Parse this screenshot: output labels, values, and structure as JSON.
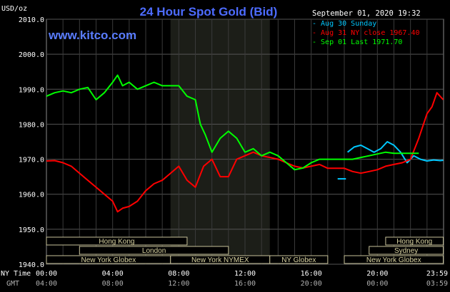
{
  "chart_data": {
    "type": "line",
    "title": "24 Hour Spot Gold (Bid)",
    "watermark": "www.kitco.com",
    "y_unit_label": "USD/oz",
    "timestamp": "September 01, 2020 19:32",
    "ylim": [
      1940,
      2010
    ],
    "xlim": [
      0,
      24
    ],
    "y_ticks": [
      "2010.0",
      "2000.0",
      "1990.0",
      "1980.0",
      "1970.0",
      "1960.0",
      "1950.0",
      "1940.0"
    ],
    "y_tick_values": [
      2010,
      2000,
      1990,
      1980,
      1970,
      1960,
      1950,
      1940
    ],
    "x_row_label_ny": "NY Time",
    "x_row_label_gmt": "GMT",
    "x_ticks_ny": [
      "00:00",
      "04:00",
      "08:00",
      "12:00",
      "16:00",
      "20:00",
      "23:59"
    ],
    "x_ticks_gmt": [
      "04:00",
      "08:00",
      "12:00",
      "16:00",
      "20:00",
      "00:00",
      "03:59"
    ],
    "x_tick_positions": [
      0,
      4,
      8,
      12,
      16,
      20,
      23.983
    ],
    "grid": true,
    "highlight_band": [
      7.5,
      13.5
    ],
    "legend_position": "top-right",
    "series": [
      {
        "name": "Aug 30 Sunday",
        "legend": "Aug 30 Sunday",
        "color": "#00c8ff",
        "x": [
          18.2,
          18.6,
          19.0,
          19.4,
          19.8,
          20.2,
          20.6,
          21.0,
          21.4,
          21.8,
          22.2,
          22.6,
          23.0,
          23.4,
          23.8,
          23.98
        ],
        "y": [
          1972,
          1973.5,
          1974,
          1973,
          1972,
          1973,
          1975,
          1974,
          1972,
          1969,
          1971,
          1970,
          1969.5,
          1969.8,
          1969.6,
          1969.7
        ],
        "extra_segment": {
          "x": [
            17.6,
            18.1
          ],
          "y": [
            1964.4,
            1964.4
          ]
        }
      },
      {
        "name": "Aug 31 NY close 1967.40",
        "legend": "Aug 31 NY close 1967.40",
        "color": "#ff0000",
        "x": [
          0,
          0.5,
          1,
          1.5,
          2,
          2.5,
          3,
          3.5,
          4,
          4.3,
          4.6,
          5,
          5.5,
          6,
          6.5,
          7,
          7.5,
          8,
          8.5,
          9,
          9.5,
          10,
          10.5,
          11,
          11.5,
          12,
          12.5,
          13,
          13.5,
          14,
          14.5,
          15,
          15.5,
          16,
          16.5,
          17,
          17.5,
          18,
          18.5,
          19,
          19.5,
          20,
          20.5,
          21,
          21.5,
          22,
          22.5,
          23,
          23.3,
          23.6,
          23.98
        ],
        "y": [
          1969.5,
          1969.6,
          1969,
          1968,
          1966,
          1964,
          1962,
          1960,
          1958,
          1955,
          1956,
          1956.5,
          1958,
          1961,
          1963,
          1964,
          1966,
          1968,
          1964,
          1962,
          1968,
          1970,
          1965,
          1965,
          1970,
          1971,
          1972,
          1971,
          1970.5,
          1970,
          1969,
          1968,
          1967.5,
          1968,
          1968.5,
          1967.4,
          1967.4,
          1967.4,
          1966.5,
          1966,
          1966.5,
          1967,
          1968,
          1968.5,
          1969,
          1970,
          1976,
          1983,
          1985,
          1989,
          1987
        ]
      },
      {
        "name": "Sep 01 Last 1971.70",
        "legend": "Sep 01 Last 1971.70",
        "color": "#00ff00",
        "x": [
          0,
          0.5,
          1,
          1.5,
          2,
          2.5,
          3,
          3.5,
          4,
          4.3,
          4.6,
          5,
          5.5,
          6,
          6.5,
          7,
          7.5,
          8,
          8.5,
          9,
          9.3,
          9.6,
          10,
          10.5,
          11,
          11.5,
          12,
          12.5,
          13,
          13.5,
          14,
          14.5,
          15,
          15.5,
          16,
          16.5,
          17,
          17.5,
          18,
          18.5,
          19,
          19.5,
          20,
          20.5,
          21,
          21.5,
          22,
          22.5
        ],
        "y": [
          1988,
          1989,
          1989.5,
          1989,
          1990,
          1990.5,
          1987,
          1989,
          1992,
          1994,
          1991,
          1992,
          1990,
          1991,
          1992,
          1991,
          1991,
          1991,
          1988,
          1987,
          1980,
          1977,
          1972,
          1976,
          1978,
          1976,
          1972,
          1973,
          1971,
          1972,
          1971,
          1969,
          1967,
          1967.5,
          1969,
          1970,
          1970,
          1970,
          1970,
          1970,
          1970.5,
          1971,
          1971.5,
          1972,
          1971.7,
          1971.7,
          1971.7,
          1971.7
        ]
      }
    ],
    "sessions": [
      {
        "label": "Hong Kong",
        "start": 0,
        "end": 8.5,
        "row": 0
      },
      {
        "label": "Hong Kong",
        "start": 20.5,
        "end": 23.98,
        "row": 0
      },
      {
        "label": "London",
        "start": 2,
        "end": 11,
        "row": 1
      },
      {
        "label": "Sydney",
        "start": 19.5,
        "end": 23.98,
        "row": 1
      },
      {
        "label": "New York Globex",
        "start": 0,
        "end": 7.5,
        "row": 2
      },
      {
        "label": "New York NYMEX",
        "start": 7.5,
        "end": 13.5,
        "row": 2
      },
      {
        "label": "NY Globex",
        "start": 13.5,
        "end": 17,
        "row": 2
      },
      {
        "label": "New York Globex",
        "start": 18,
        "end": 23.98,
        "row": 2
      }
    ]
  }
}
